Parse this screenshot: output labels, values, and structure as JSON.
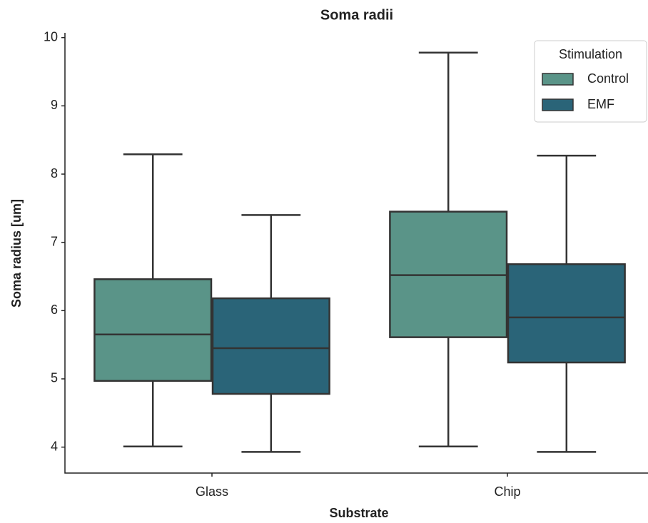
{
  "chart_data": {
    "type": "box",
    "title": "Soma radii",
    "x_label": "Substrate",
    "y_label": "Soma radius [um]",
    "categories": [
      "Glass",
      "Chip"
    ],
    "legend_title": "Stimulation",
    "legend": "upper right",
    "series": [
      {
        "name": "Control",
        "color": "#5a9488",
        "values": [
          {
            "min": 4.01,
            "q1": 4.97,
            "median": 5.65,
            "q3": 6.46,
            "max": 8.29
          },
          {
            "min": 4.01,
            "q1": 5.61,
            "median": 6.52,
            "q3": 7.45,
            "max": 9.78
          }
        ]
      },
      {
        "name": "EMF",
        "color": "#2a6478",
        "values": [
          {
            "min": 3.93,
            "q1": 4.78,
            "median": 5.45,
            "q3": 6.18,
            "max": 7.4
          },
          {
            "min": 3.93,
            "q1": 5.24,
            "median": 5.9,
            "q3": 6.68,
            "max": 8.27
          }
        ]
      }
    ],
    "ylim": [
      3.62,
      10.07
    ],
    "yticks": [
      4,
      5,
      6,
      7,
      8,
      9,
      10
    ],
    "grid": false
  }
}
